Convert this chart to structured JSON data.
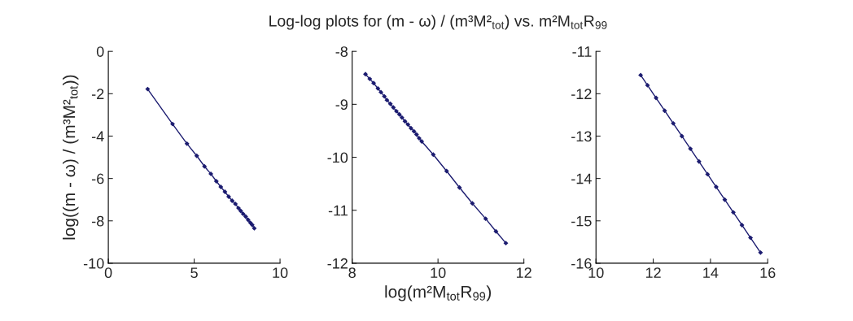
{
  "chart_data": [
    {
      "type": "line",
      "ylabel": "log((m - ω) / (m³M²$_{tot}$))",
      "xlim": [
        0,
        10
      ],
      "xticks": [
        0,
        5,
        10
      ],
      "ylim": [
        -10,
        0
      ],
      "yticks": [
        -10,
        -8,
        -6,
        -4,
        -2,
        0
      ],
      "grid": false,
      "marker": "diamond",
      "line_style": "solid",
      "series": [
        {
          "color": "#1c1c70",
          "x": [
            2.29,
            3.74,
            4.58,
            5.15,
            5.6,
            5.97,
            6.29,
            6.55,
            6.79,
            7.01,
            7.21,
            7.4,
            7.58,
            7.71,
            7.85,
            8.0,
            8.14,
            8.27,
            8.38,
            8.5
          ],
          "values": [
            -1.78,
            -3.43,
            -4.36,
            -4.93,
            -5.43,
            -5.78,
            -6.13,
            -6.4,
            -6.63,
            -6.86,
            -7.05,
            -7.2,
            -7.4,
            -7.53,
            -7.67,
            -7.8,
            -7.95,
            -8.09,
            -8.19,
            -8.35
          ]
        }
      ]
    },
    {
      "type": "line",
      "title": "Log-log plots for (m - ω) / (m³M²$_{tot}$) vs. m²M$_{tot}$R$_{99}$",
      "xlabel": "log(m²M$_{tot}$R$_{99}$)",
      "xlim": [
        8,
        12
      ],
      "xticks": [
        8,
        10,
        12
      ],
      "ylim": [
        -12,
        -8
      ],
      "yticks": [
        -12,
        -11,
        -10,
        -9,
        -8
      ],
      "grid": false,
      "marker": "diamond",
      "line_style": "solid",
      "series": [
        {
          "color": "#1c1c70",
          "x": [
            8.31,
            8.41,
            8.5,
            8.6,
            8.67,
            8.75,
            8.81,
            8.89,
            8.96,
            9.03,
            9.1,
            9.16,
            9.23,
            9.3,
            9.37,
            9.44,
            9.5,
            9.56,
            9.62,
            9.89,
            10.2,
            10.5,
            10.8,
            11.11,
            11.35,
            11.58
          ],
          "values": [
            -8.43,
            -8.52,
            -8.6,
            -8.7,
            -8.77,
            -8.85,
            -8.92,
            -8.99,
            -9.06,
            -9.13,
            -9.19,
            -9.25,
            -9.32,
            -9.38,
            -9.45,
            -9.51,
            -9.57,
            -9.64,
            -9.7,
            -9.95,
            -10.26,
            -10.57,
            -10.87,
            -11.16,
            -11.4,
            -11.62
          ]
        }
      ]
    },
    {
      "type": "line",
      "xlim": [
        10,
        16
      ],
      "xticks": [
        10,
        12,
        14,
        16
      ],
      "ylim": [
        -16,
        -11
      ],
      "yticks": [
        -16,
        -15,
        -14,
        -13,
        -12,
        -11
      ],
      "grid": false,
      "marker": "diamond",
      "line_style": "solid",
      "series": [
        {
          "color": "#1c1c70",
          "x": [
            11.56,
            11.8,
            12.1,
            12.4,
            12.7,
            13.0,
            13.3,
            13.6,
            13.9,
            14.2,
            14.5,
            14.8,
            15.1,
            15.4,
            15.75
          ],
          "values": [
            -11.56,
            -11.8,
            -12.1,
            -12.4,
            -12.7,
            -13.0,
            -13.3,
            -13.6,
            -13.9,
            -14.2,
            -14.5,
            -14.8,
            -15.1,
            -15.4,
            -15.75
          ]
        }
      ]
    }
  ]
}
